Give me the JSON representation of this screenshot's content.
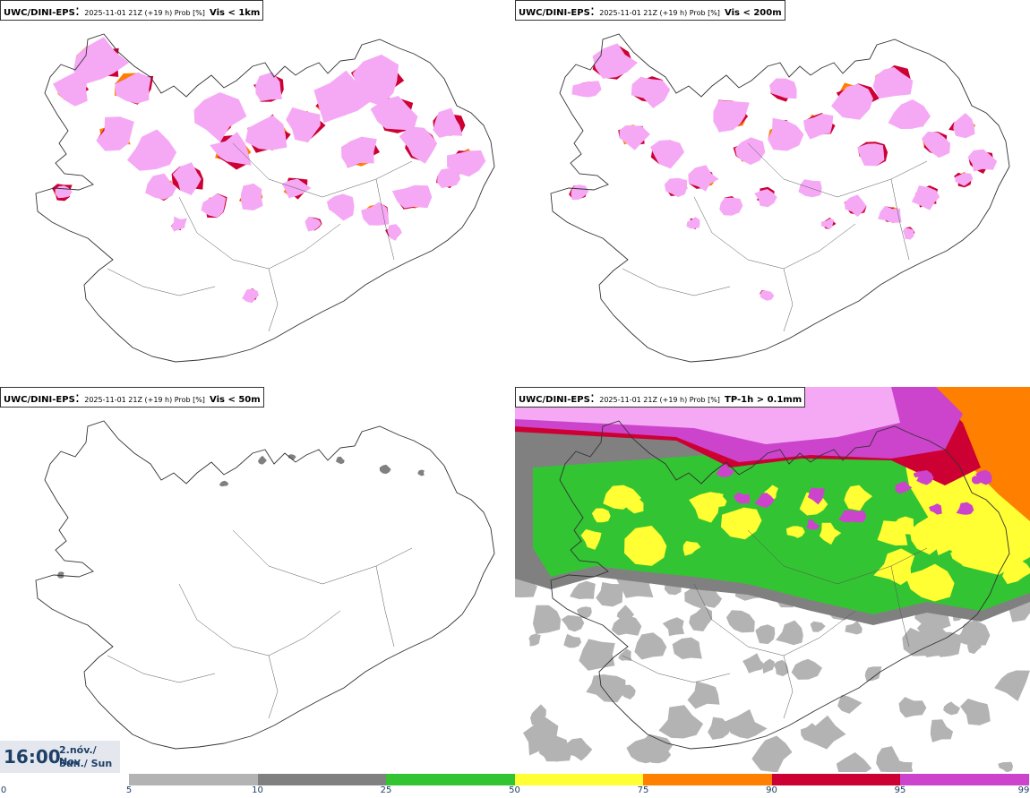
{
  "panels": [
    {
      "source": "UWC/DINI-EPS",
      "meta": "2025-11-01 21Z (+19 h) Prob [%]",
      "variable": "Vis < 1km",
      "intensity": "high"
    },
    {
      "source": "UWC/DINI-EPS",
      "meta": "2025-11-01 21Z (+19 h) Prob [%]",
      "variable": "Vis < 200m",
      "intensity": "medium"
    },
    {
      "source": "UWC/DINI-EPS",
      "meta": "2025-11-01 21Z (+19 h) Prob [%]",
      "variable": "Vis < 50m",
      "intensity": "low"
    },
    {
      "source": "UWC/DINI-EPS",
      "meta": "2025-11-01 21Z (+19 h) Prob [%]",
      "variable": "TP-1h > 0.1mm",
      "intensity": "precip"
    }
  ],
  "valid_time": {
    "time": "16:00",
    "date_line": "2.nóv./ Nov",
    "day_line": "Sun./ Sun"
  },
  "legend": {
    "thresholds": [
      "0",
      "5",
      "10",
      "25",
      "50",
      "75",
      "90",
      "95",
      "99"
    ],
    "colors": [
      "#ffffff",
      "#b3b3b3",
      "#808080",
      "#33c433",
      "#ffff33",
      "#ff8000",
      "#cc0033",
      "#cc44cc",
      "#f5a9f5"
    ]
  }
}
